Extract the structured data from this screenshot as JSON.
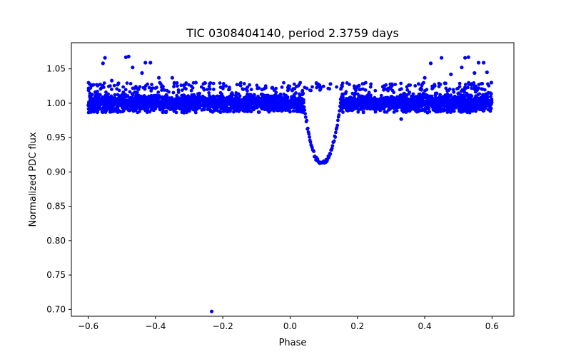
{
  "chart_data": {
    "type": "scatter",
    "title": "TIC 0308404140, period 2.3759 days",
    "xlabel": "Phase",
    "ylabel": "Normalized PDC flux",
    "xlim": [
      -0.65,
      0.665
    ],
    "ylim": [
      0.69,
      1.088
    ],
    "xticks": [
      -0.6,
      -0.4,
      -0.2,
      0.0,
      0.2,
      0.4,
      0.6
    ],
    "xtick_labels": [
      "−0.6",
      "−0.4",
      "−0.2",
      "0.0",
      "0.2",
      "0.4",
      "0.6"
    ],
    "yticks": [
      0.7,
      0.75,
      0.8,
      0.85,
      0.9,
      0.95,
      1.0,
      1.05
    ],
    "ytick_labels": [
      "0.70",
      "0.75",
      "0.80",
      "0.85",
      "0.90",
      "0.95",
      "1.00",
      "1.05"
    ],
    "grid": false,
    "marker_color": "#0000ff",
    "series": [
      {
        "name": "PDC flux",
        "phase_range": [
          -0.6,
          0.6
        ],
        "baseline_flux": 1.0,
        "baseline_scatter": 0.006,
        "transit": {
          "center_phase": 0.095,
          "half_width": 0.055,
          "min_flux": 0.913
        },
        "x": [
          -0.556,
          -0.55,
          -0.53,
          -0.51,
          -0.488,
          -0.48,
          -0.468,
          -0.44,
          -0.43,
          -0.415,
          -0.39,
          -0.35,
          -0.28,
          -0.233,
          0.12,
          0.3,
          0.33,
          0.4,
          0.418,
          0.45,
          0.46,
          0.478,
          0.51,
          0.52,
          0.53,
          0.548,
          0.56,
          0.575,
          0.585,
          0.598
        ],
        "y": [
          1.058,
          1.066,
          1.033,
          1.029,
          1.067,
          1.068,
          1.052,
          1.044,
          1.059,
          1.059,
          1.037,
          1.037,
          1.03,
          0.697,
          1.028,
          1.024,
          0.977,
          1.037,
          1.058,
          1.066,
          1.029,
          1.042,
          1.052,
          1.066,
          1.067,
          1.044,
          1.059,
          1.059,
          1.045,
          1.03
        ]
      }
    ]
  }
}
